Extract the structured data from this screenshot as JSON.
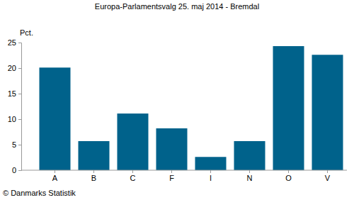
{
  "chart_data": {
    "type": "bar",
    "title": "Europa-Parlamentsvalg 25. maj 2014 - Bremdal",
    "ylabel": "Pct.",
    "source": "© Danmarks Statistik",
    "categories": [
      "A",
      "B",
      "C",
      "F",
      "I",
      "N",
      "O",
      "V"
    ],
    "values": [
      20.1,
      5.7,
      11.1,
      8.2,
      2.6,
      5.7,
      24.3,
      22.6
    ],
    "color": "#00628b",
    "ylim": [
      0,
      25
    ],
    "yticks": [
      0,
      5,
      10,
      15,
      20,
      25
    ],
    "grid": false
  }
}
